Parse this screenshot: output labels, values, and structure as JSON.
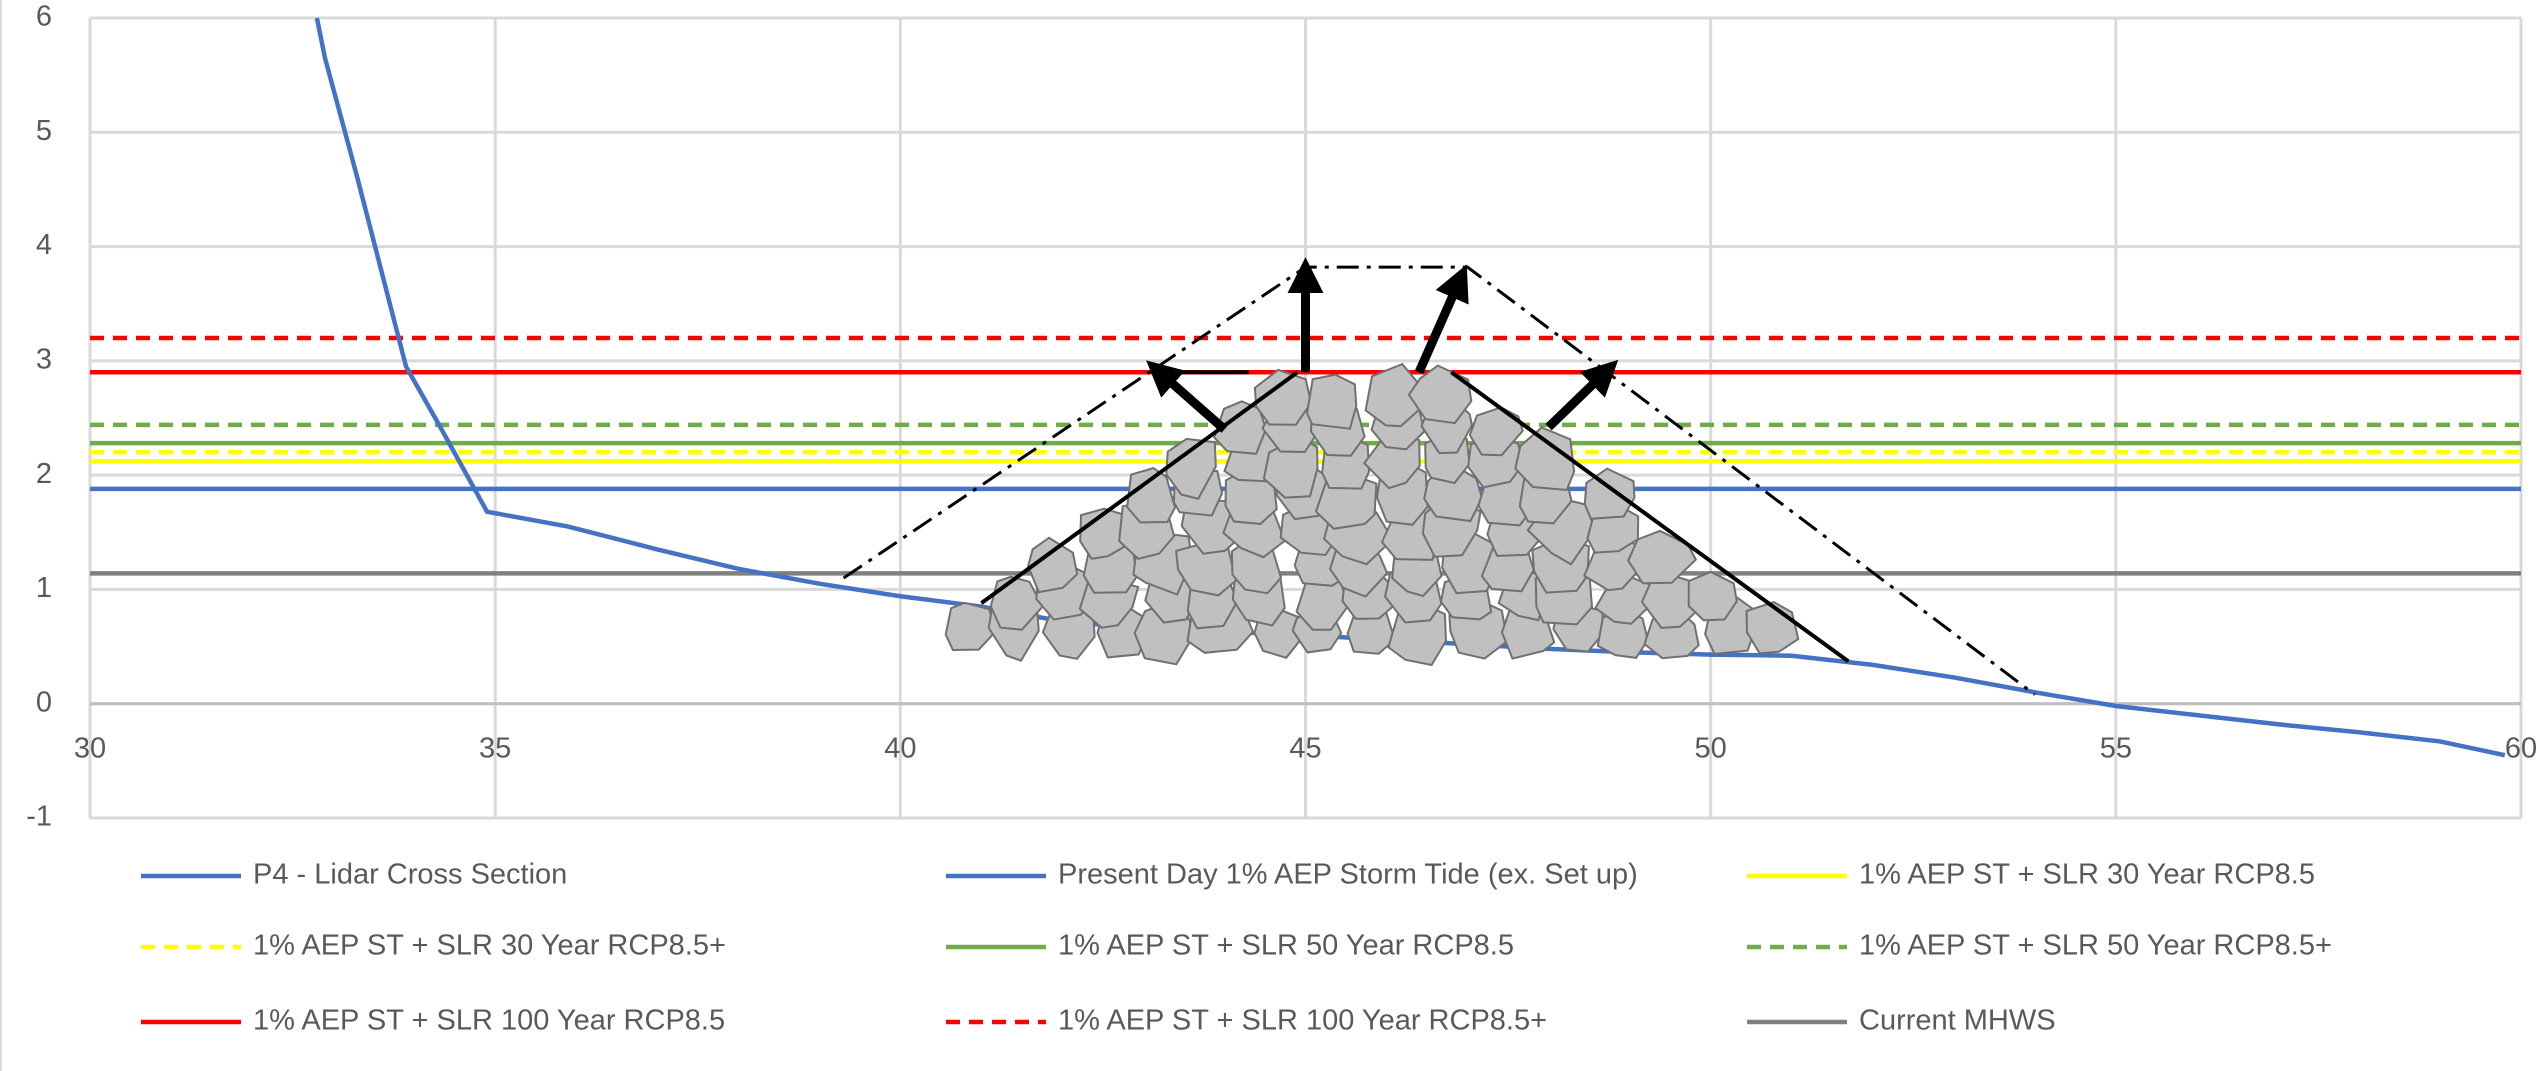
{
  "chart_data": {
    "type": "line",
    "xlim": [
      30,
      60
    ],
    "xticks": [
      30,
      35,
      40,
      45,
      50,
      55,
      60
    ],
    "ylim": [
      -1,
      6
    ],
    "yticks": [
      -1,
      0,
      1,
      2,
      3,
      4,
      5,
      6
    ],
    "grid": true,
    "series": [
      {
        "name": "P4 - Lidar Cross Section",
        "color": "#4472c4",
        "dash": false,
        "x": [
          32.8,
          32.9,
          33.3,
          33.9,
          34.3,
          34.9,
          35.9,
          37,
          38,
          39,
          40,
          41,
          42,
          43,
          44,
          45,
          46,
          47,
          48,
          49,
          50,
          51,
          52,
          53,
          54,
          55,
          56,
          57,
          58,
          59,
          59.8
        ],
        "values": [
          6,
          5.65,
          4.6,
          2.95,
          2.45,
          1.68,
          1.55,
          1.35,
          1.18,
          1.05,
          0.94,
          0.85,
          0.72,
          0.66,
          0.63,
          0.6,
          0.56,
          0.52,
          0.48,
          0.45,
          0.43,
          0.42,
          0.34,
          0.23,
          0.1,
          -0.02,
          -0.1,
          -0.18,
          -0.25,
          -0.33,
          -0.45
        ]
      },
      {
        "name": "Present Day 1% AEP Storm Tide (ex. Set up)",
        "color": "#4472c4",
        "dash": false,
        "level": 1.88
      },
      {
        "name": "1% AEP ST + SLR 30 Year RCP8.5",
        "color": "#ffff00",
        "dash": false,
        "level": 2.12
      },
      {
        "name": "1% AEP ST + SLR 30 Year RCP8.5+",
        "color": "#ffff00",
        "dash": true,
        "level": 2.2
      },
      {
        "name": "1% AEP ST + SLR 50 Year RCP8.5",
        "color": "#70ad47",
        "dash": false,
        "level": 2.28
      },
      {
        "name": "1% AEP ST + SLR 50 Year RCP8.5+",
        "color": "#70ad47",
        "dash": true,
        "level": 2.44
      },
      {
        "name": "1% AEP ST + SLR 100 Year RCP8.5",
        "color": "#ff0000",
        "dash": false,
        "level": 2.9
      },
      {
        "name": "1% AEP ST + SLR 100 Year RCP8.5+",
        "color": "#ff0000",
        "dash": true,
        "level": 3.2
      },
      {
        "name": "Current MHWS",
        "color": "#808080",
        "dash": false,
        "level": 1.14
      }
    ]
  }
}
